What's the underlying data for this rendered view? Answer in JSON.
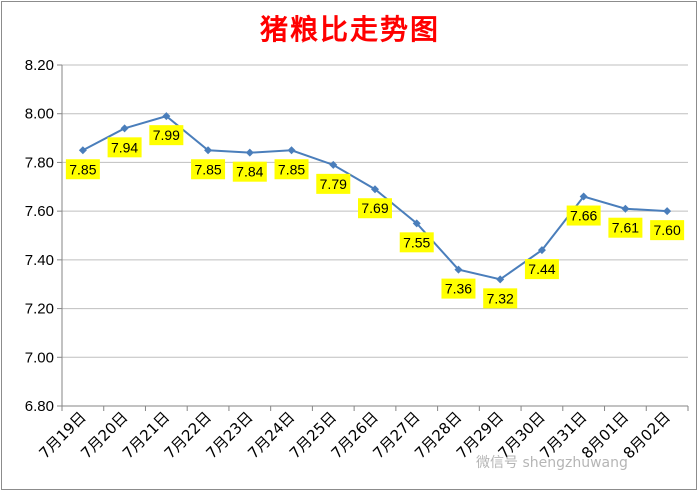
{
  "chart_data": {
    "type": "line",
    "title": "猪粮比走势图",
    "xlabel": "",
    "ylabel": "",
    "categories": [
      "7月19日",
      "7月20日",
      "7月21日",
      "7月22日",
      "7月23日",
      "7月24日",
      "7月25日",
      "7月26日",
      "7月27日",
      "7月28日",
      "7月29日",
      "7月30日",
      "7月31日",
      "8月01日",
      "8月02日"
    ],
    "series": [
      {
        "values": [
          7.85,
          7.94,
          7.99,
          7.85,
          7.84,
          7.85,
          7.79,
          7.69,
          7.55,
          7.36,
          7.32,
          7.44,
          7.66,
          7.61,
          7.6
        ]
      }
    ],
    "data_labels": [
      "7.85",
      "7.94",
      "7.99",
      "7.85",
      "7.84",
      "7.85",
      "7.79",
      "7.69",
      "7.55",
      "7.36",
      "7.32",
      "7.44",
      "7.66",
      "7.61",
      "7.60"
    ],
    "ylim": [
      6.8,
      8.2
    ],
    "yticks": [
      "8.20",
      "8.00",
      "7.80",
      "7.60",
      "7.40",
      "7.20",
      "7.00",
      "6.80"
    ],
    "grid": true,
    "colors": {
      "line": "#4a7ebb",
      "label_bg": "#ffff00",
      "title": "#ff0000",
      "grid": "#bfbfbf"
    }
  },
  "watermark": "微信号 shengzhuwang"
}
